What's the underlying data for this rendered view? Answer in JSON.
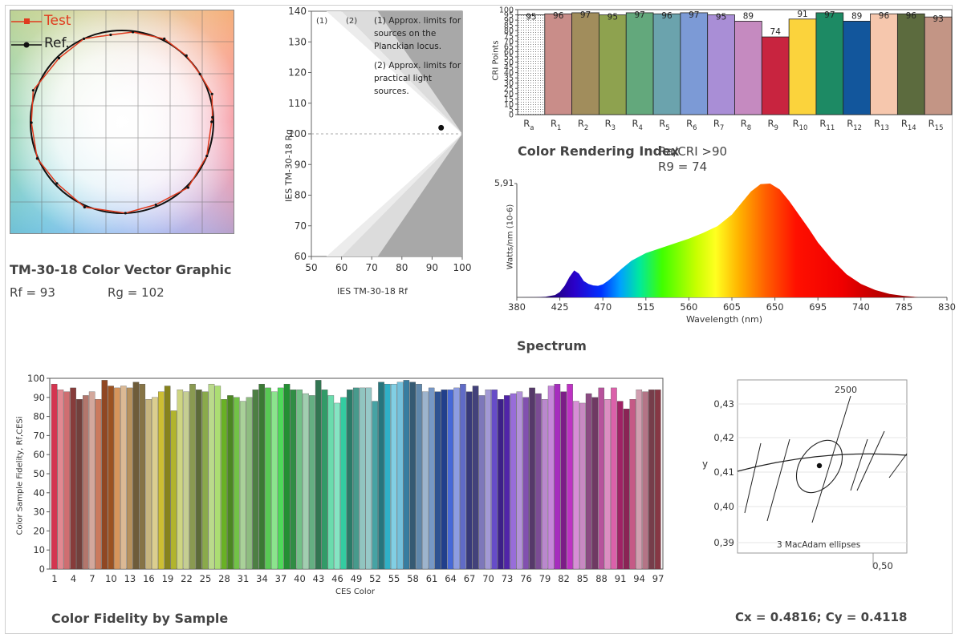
{
  "tm30": {
    "title": "TM-30-18 Color Vector Graphic",
    "rf_label": "Rf = 93",
    "rg_label": "Rg = 102",
    "legend_test": "Test",
    "legend_ref": "Ref.",
    "test_color": "#e03a1e",
    "ref_color": "#111111",
    "test_vectors": [
      [
        0.0,
        0.98
      ],
      [
        0.05,
        0.99
      ],
      [
        0.3,
        1.03
      ],
      [
        0.55,
        1.0
      ],
      [
        0.8,
        1.01
      ],
      [
        1.1,
        1.02
      ],
      [
        1.45,
        0.99
      ],
      [
        1.7,
        0.96
      ],
      [
        2.0,
        1.0
      ],
      [
        2.35,
        0.98
      ],
      [
        2.8,
        1.03
      ],
      [
        3.15,
        0.99
      ],
      [
        3.55,
        1.01
      ],
      [
        3.9,
        0.98
      ],
      [
        4.3,
        1.02
      ],
      [
        4.75,
        1.0
      ],
      [
        5.1,
        0.98
      ],
      [
        5.5,
        1.02
      ],
      [
        5.9,
        1.0
      ]
    ]
  },
  "rfrg": {
    "xlabel": "IES TM-30-18 Rf",
    "ylabel": "IES TM-30-18 Rg",
    "xticks": [
      50,
      60,
      70,
      80,
      90,
      100
    ],
    "yticks": [
      60,
      70,
      80,
      90,
      100,
      110,
      120,
      130,
      140
    ],
    "label1": "(1)",
    "label2": "(2)",
    "note1_lines": [
      "(1) Approx. limits for",
      "sources on the",
      "Planckian locus."
    ],
    "note2_lines": [
      "(2) Approx. limits for",
      "practical light",
      "sources."
    ],
    "point": {
      "rf": 93,
      "rg": 102
    }
  },
  "cri": {
    "title": "Color Rendering Index",
    "subtitle_ra": "Ra/CRI >90",
    "subtitle_r9": "R9 = 74",
    "ylabel": "CRI Points",
    "yticks": [
      0,
      5,
      10,
      15,
      20,
      25,
      30,
      35,
      40,
      45,
      50,
      55,
      60,
      65,
      70,
      75,
      80,
      85,
      90,
      95,
      100
    ],
    "categories": [
      "Ra",
      "R1",
      "R2",
      "R3",
      "R4",
      "R5",
      "R6",
      "R7",
      "R8",
      "R9",
      "R10",
      "R11",
      "R12",
      "R13",
      "R14",
      "R15"
    ],
    "values": [
      95,
      96,
      97,
      95,
      97,
      96,
      97,
      95,
      89,
      74,
      91,
      97,
      89,
      96,
      96,
      93
    ],
    "colors": [
      "#ffffff",
      "#c98d89",
      "#a18d5c",
      "#8ea24f",
      "#63a87c",
      "#6ba3ad",
      "#7c9ad6",
      "#a98ed6",
      "#c58ac0",
      "#c8243f",
      "#fbd33c",
      "#1d8a64",
      "#12569c",
      "#f6c7ad",
      "#5c6b3e",
      "#c39585"
    ]
  },
  "spectrum": {
    "title": "Spectrum",
    "xlabel": "Wavelength (nm)",
    "ylabel": "Watts/nm (10-6)",
    "ymax_label": "5,91",
    "xticks": [
      380,
      425,
      470,
      515,
      560,
      605,
      650,
      695,
      740,
      785,
      830
    ],
    "chart_data": {
      "type": "area",
      "x": [
        380,
        400,
        410,
        420,
        425,
        430,
        435,
        440,
        445,
        450,
        455,
        460,
        465,
        470,
        475,
        480,
        490,
        500,
        515,
        530,
        545,
        560,
        575,
        590,
        605,
        615,
        625,
        635,
        645,
        655,
        665,
        675,
        685,
        695,
        710,
        725,
        740,
        755,
        770,
        785,
        795,
        800
      ],
      "y": [
        0.0,
        0.01,
        0.03,
        0.12,
        0.28,
        0.6,
        1.05,
        1.4,
        1.23,
        0.85,
        0.7,
        0.62,
        0.6,
        0.68,
        0.85,
        1.05,
        1.5,
        1.9,
        2.3,
        2.55,
        2.8,
        3.05,
        3.35,
        3.7,
        4.3,
        4.9,
        5.5,
        5.88,
        5.91,
        5.6,
        5.0,
        4.3,
        3.6,
        2.85,
        1.95,
        1.2,
        0.7,
        0.38,
        0.18,
        0.07,
        0.03,
        0.0
      ],
      "xlim": [
        380,
        830
      ],
      "ylim": [
        0,
        5.91
      ]
    }
  },
  "fidelity": {
    "title": "Color Fidelity by Sample",
    "xlabel": "CES Color",
    "ylabel": "Color Sample Fidelity, Rf,CESi",
    "yticks": [
      0,
      10,
      20,
      30,
      40,
      50,
      60,
      70,
      80,
      90,
      100
    ],
    "xticks": [
      1,
      4,
      7,
      10,
      13,
      16,
      19,
      22,
      25,
      28,
      31,
      34,
      37,
      40,
      43,
      46,
      49,
      52,
      55,
      58,
      61,
      64,
      67,
      70,
      73,
      76,
      79,
      82,
      85,
      88,
      91,
      94,
      97
    ],
    "chart_data": {
      "type": "bar",
      "ylim": [
        0,
        100
      ],
      "values": [
        97,
        94,
        93,
        95,
        89,
        91,
        93,
        89,
        99,
        96,
        95,
        96,
        95,
        98,
        97,
        89,
        90,
        93,
        96,
        83,
        94,
        93,
        97,
        94,
        93,
        97,
        96,
        89,
        91,
        90,
        88,
        90,
        94,
        97,
        95,
        93,
        95,
        97,
        94,
        94,
        92,
        91,
        99,
        94,
        91,
        87,
        90,
        94,
        95,
        95,
        95,
        88,
        98,
        97,
        97,
        98,
        99,
        98,
        97,
        93,
        95,
        93,
        94,
        94,
        95,
        97,
        93,
        96,
        91,
        94,
        94,
        89,
        91,
        92,
        93,
        90,
        95,
        92,
        89,
        96,
        97,
        93,
        97,
        88,
        87,
        92,
        90,
        95,
        89,
        95,
        88,
        84,
        89,
        94,
        93,
        94,
        94
      ]
    }
  },
  "macadam": {
    "label_2500": "2500",
    "ylabel": "y",
    "yticks": [
      "0,39",
      "0,40",
      "0,41",
      "0,42",
      "0,43"
    ],
    "xtick": "0,50",
    "ellipse_label": "3  MacAdam ellipses",
    "point": {
      "x": 0.4816,
      "y": 0.4118
    },
    "result": "Cx = 0.4816; Cy = 0.4118"
  }
}
